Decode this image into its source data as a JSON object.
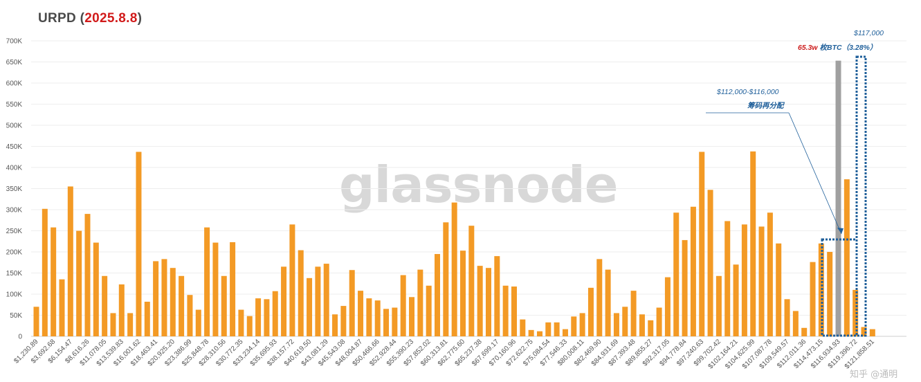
{
  "title": {
    "prefix": "URPD (",
    "date": "2025.8.8",
    "suffix": ")"
  },
  "watermark": "glassnode",
  "corner_watermark": "知乎 @通明",
  "colors": {
    "bar": "#f39a25",
    "title_date": "#d11b1b",
    "annotation": "#1f5f9a",
    "annotation_red": "#cc1b1b",
    "box": "#1f5f9a"
  },
  "annotations": {
    "peak_price": "$117,000",
    "peak_amount": "65.3w",
    "peak_rest": " 枚BTC（3.28%）",
    "range_label": "$112,000-$116,000",
    "range_note": "筹码再分配"
  },
  "chart_data": {
    "type": "bar",
    "ylim": [
      0,
      700000
    ],
    "yticks": [
      "0",
      "50K",
      "100K",
      "150K",
      "200K",
      "250K",
      "300K",
      "350K",
      "400K",
      "450K",
      "500K",
      "550K",
      "600K",
      "650K",
      "700K"
    ],
    "xtick_labels": [
      "$1,230.89",
      "$3,692.68",
      "$6,154.47",
      "$8,616.26",
      "$11,078.05",
      "$13,539.83",
      "$16,001.62",
      "$18,463.41",
      "$20,925.20",
      "$23,386.99",
      "$25,848.78",
      "$28,310.56",
      "$30,772.35",
      "$33,234.14",
      "$35,695.93",
      "$38,157.72",
      "$40,619.50",
      "$43,081.29",
      "$45,543.08",
      "$48,004.87",
      "$50,466.66",
      "$52,928.44",
      "$55,390.23",
      "$57,852.02",
      "$60,313.81",
      "$62,775.60",
      "$65,237.38",
      "$67,699.17",
      "$70,160.96",
      "$72,622.75",
      "$75,084.54",
      "$77,546.33",
      "$80,008.11",
      "$82,469.90",
      "$84,931.69",
      "$87,393.48",
      "$89,855.27",
      "$92,317.05",
      "$94,778.84",
      "$97,240.63",
      "$99,702.42",
      "$102,164.21",
      "$104,625.99",
      "$107,087.78",
      "$109,549.57",
      "$112,011.36",
      "$114,473.15",
      "$116,934.93",
      "$119,396.72",
      "$121,858.51"
    ],
    "values": [
      70000,
      302000,
      258000,
      135000,
      355000,
      250000,
      290000,
      222000,
      143000,
      55000,
      123000,
      55000,
      437000,
      82000,
      178000,
      183000,
      162000,
      143000,
      98000,
      63000,
      258000,
      222000,
      143000,
      223000,
      63000,
      48000,
      90000,
      88000,
      107000,
      165000,
      265000,
      204000,
      138000,
      165000,
      172000,
      52000,
      72000,
      157000,
      108000,
      90000,
      85000,
      65000,
      68000,
      145000,
      93000,
      158000,
      120000,
      195000,
      270000,
      317000,
      203000,
      262000,
      167000,
      162000,
      190000,
      120000,
      118000,
      40000,
      15000,
      12000,
      33000,
      33000,
      17000,
      47000,
      55000,
      115000,
      183000,
      158000,
      55000,
      70000,
      108000,
      52000,
      38000,
      68000,
      140000,
      293000,
      228000,
      307000,
      437000,
      347000,
      143000,
      273000,
      170000,
      265000,
      438000,
      260000,
      293000,
      220000,
      88000,
      60000,
      20000,
      176000,
      220000,
      200000,
      653000,
      372000,
      110000,
      22000,
      17000
    ]
  }
}
